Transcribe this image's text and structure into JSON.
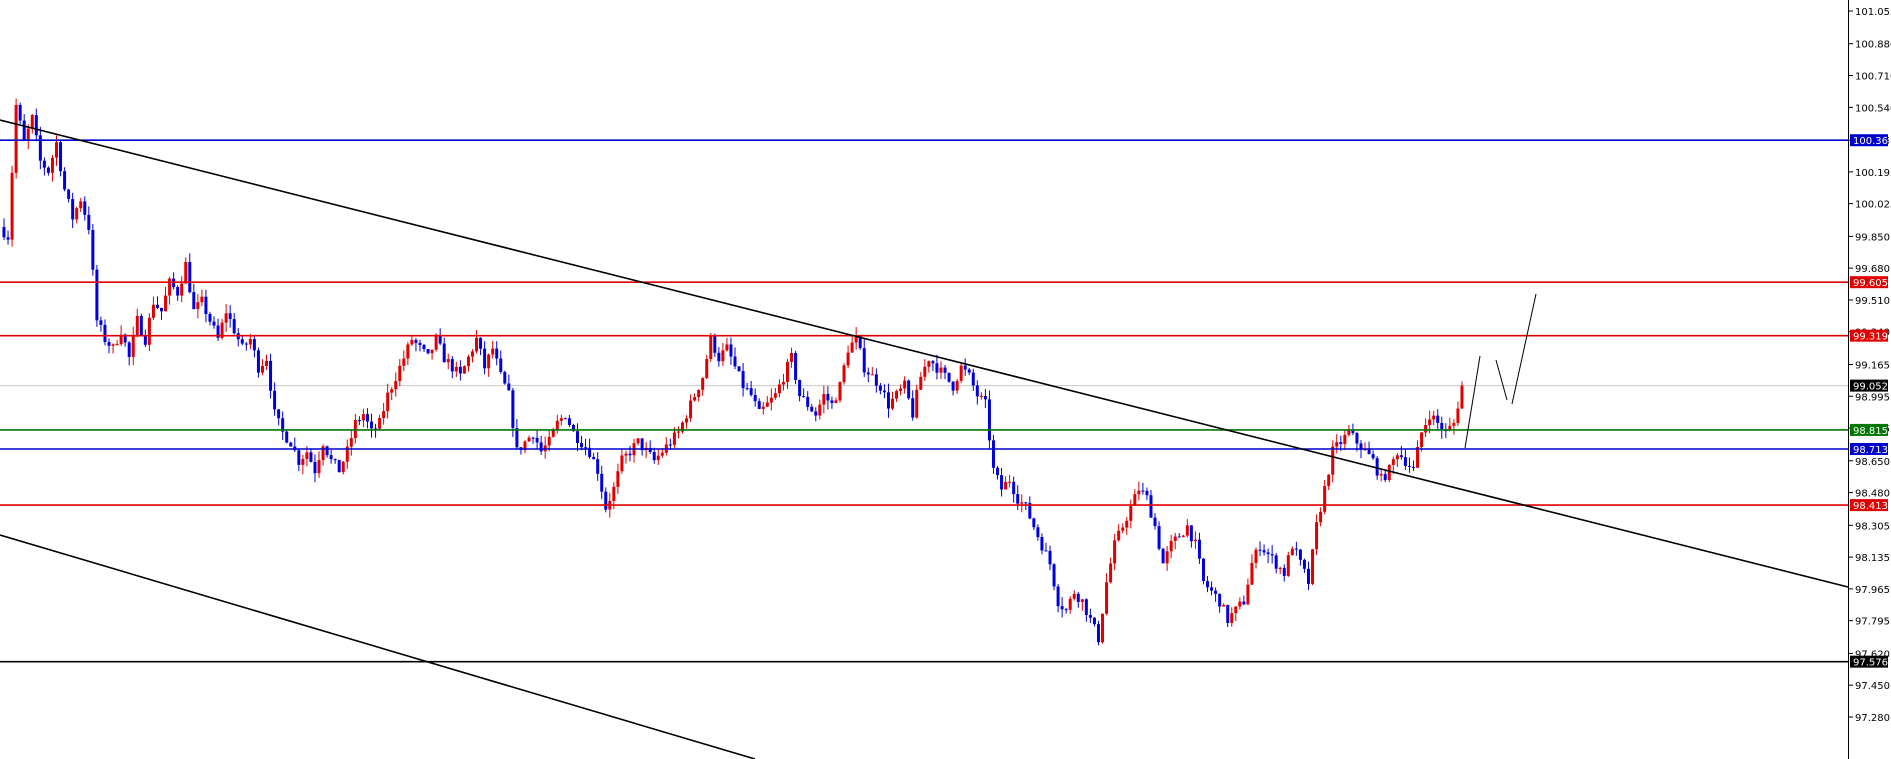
{
  "chart_data": {
    "type": "candlestick",
    "ylim": [
      97.2,
      101.15
    ],
    "y_ticks": [
      "101.055",
      "100.880",
      "100.710",
      "100.540",
      "100.364",
      "100.195",
      "100.025",
      "99.850",
      "99.680",
      "99.510",
      "99.340",
      "99.165",
      "98.995",
      "98.825",
      "98.650",
      "98.480",
      "98.305",
      "98.135",
      "97.965",
      "97.795",
      "97.620",
      "97.450",
      "97.280"
    ],
    "last_price": {
      "value": 99.052,
      "label": "99.052"
    },
    "levels": [
      {
        "value": 100.364,
        "label": "100.364",
        "color": "#0000cc"
      },
      {
        "value": 99.605,
        "label": "99.605",
        "color": "#e00000"
      },
      {
        "value": 99.319,
        "label": "99.319",
        "color": "#e00000"
      },
      {
        "value": 98.815,
        "label": "98.815",
        "color": "#007700"
      },
      {
        "value": 98.713,
        "label": "98.713",
        "color": "#0000cc"
      },
      {
        "value": 98.413,
        "label": "98.413",
        "color": "#e00000"
      },
      {
        "value": 97.576,
        "label": "97.576",
        "color": "#000000"
      }
    ],
    "candle_path": [
      99.9,
      99.85,
      100.55,
      100.35,
      100.48,
      100.25,
      100.2,
      100.35,
      100.1,
      99.95,
      100.05,
      99.9,
      99.4,
      99.3,
      99.25,
      99.35,
      99.2,
      99.4,
      99.3,
      99.5,
      99.45,
      99.6,
      99.55,
      99.7,
      99.45,
      99.5,
      99.4,
      99.3,
      99.45,
      99.35,
      99.25,
      99.3,
      99.15,
      99.2,
      98.9,
      98.8,
      98.75,
      98.65,
      98.7,
      98.6,
      98.75,
      98.65,
      98.6,
      98.7,
      98.85,
      98.9,
      98.8,
      98.85,
      99.0,
      99.1,
      99.2,
      99.3,
      99.25,
      99.2,
      99.3,
      99.2,
      99.15,
      99.1,
      99.2,
      99.3,
      99.15,
      99.25,
      99.1,
      99.0,
      98.7,
      98.75,
      98.8,
      98.7,
      98.75,
      98.85,
      98.9,
      98.8,
      98.75,
      98.7,
      98.6,
      98.4,
      98.5,
      98.65,
      98.7,
      98.75,
      98.7,
      98.65,
      98.7,
      98.75,
      98.8,
      98.9,
      99.0,
      99.1,
      99.3,
      99.2,
      99.25,
      99.15,
      99.05,
      99.0,
      98.9,
      98.95,
      99.0,
      99.1,
      99.2,
      99.0,
      98.95,
      98.9,
      99.0,
      98.95,
      99.05,
      99.25,
      99.3,
      99.15,
      99.1,
      99.05,
      98.95,
      99.0,
      99.05,
      98.9,
      99.1,
      99.2,
      99.15,
      99.1,
      99.05,
      99.15,
      99.1,
      99.0,
      98.95,
      98.6,
      98.5,
      98.55,
      98.45,
      98.4,
      98.3,
      98.2,
      98.1,
      97.9,
      97.85,
      97.95,
      97.9,
      97.8,
      97.7,
      98.0,
      98.2,
      98.3,
      98.4,
      98.5,
      98.45,
      98.3,
      98.1,
      98.2,
      98.25,
      98.3,
      98.2,
      98.0,
      97.95,
      97.9,
      97.8,
      97.85,
      97.9,
      98.1,
      98.2,
      98.15,
      98.1,
      98.05,
      98.2,
      98.1,
      98.0,
      98.3,
      98.5,
      98.7,
      98.75,
      98.8,
      98.75,
      98.7,
      98.65,
      98.55,
      98.6,
      98.7,
      98.65,
      98.6,
      98.8,
      98.9,
      98.85,
      98.8,
      98.85,
      99.05
    ]
  }
}
